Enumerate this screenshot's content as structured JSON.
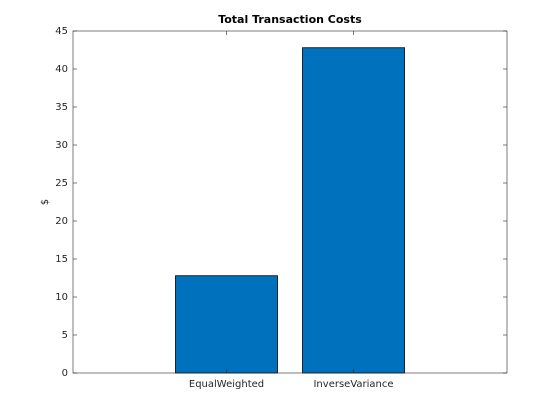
{
  "chart_data": {
    "type": "bar",
    "title": "Total Transaction Costs",
    "ylabel": "$",
    "categories": [
      "EqualWeighted",
      "InverseVariance"
    ],
    "values": [
      12.8,
      42.8
    ],
    "color": "#0072bd",
    "ylim": [
      0,
      45
    ],
    "yticks": [
      0,
      5,
      10,
      15,
      20,
      25,
      30,
      35,
      40,
      45
    ]
  }
}
